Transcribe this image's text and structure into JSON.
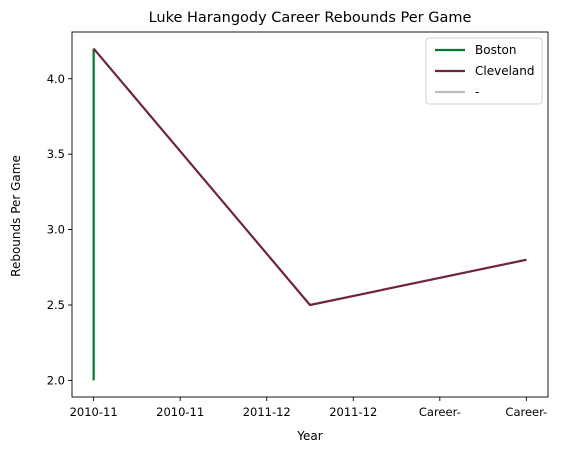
{
  "chart_data": {
    "type": "line",
    "title": "Luke Harangody Career Rebounds Per Game",
    "xlabel": "Year",
    "ylabel": "Rebounds Per Game",
    "x_tick_labels": [
      "2010-11",
      "2010-11",
      "2011-12",
      "2011-12",
      "Career-",
      "Career-"
    ],
    "y_ticks": [
      2.0,
      2.5,
      3.0,
      3.5,
      4.0
    ],
    "y_tick_labels": [
      "2.0",
      "2.5",
      "3.0",
      "3.5",
      "4.0"
    ],
    "xlim": [
      -0.25,
      5.25
    ],
    "ylim": [
      1.89,
      4.31
    ],
    "grid": false,
    "legend_position": "top-right",
    "series": [
      {
        "name": "Boston",
        "color": "#007A33",
        "x": [
          0,
          0
        ],
        "y": [
          2.0,
          4.2
        ]
      },
      {
        "name": "Cleveland",
        "color": "#6F263D",
        "x": [
          0,
          2.5,
          5
        ],
        "y": [
          4.2,
          2.5,
          2.8
        ]
      },
      {
        "name": "-",
        "color": "#BEBEBE",
        "x": [],
        "y": []
      }
    ]
  }
}
